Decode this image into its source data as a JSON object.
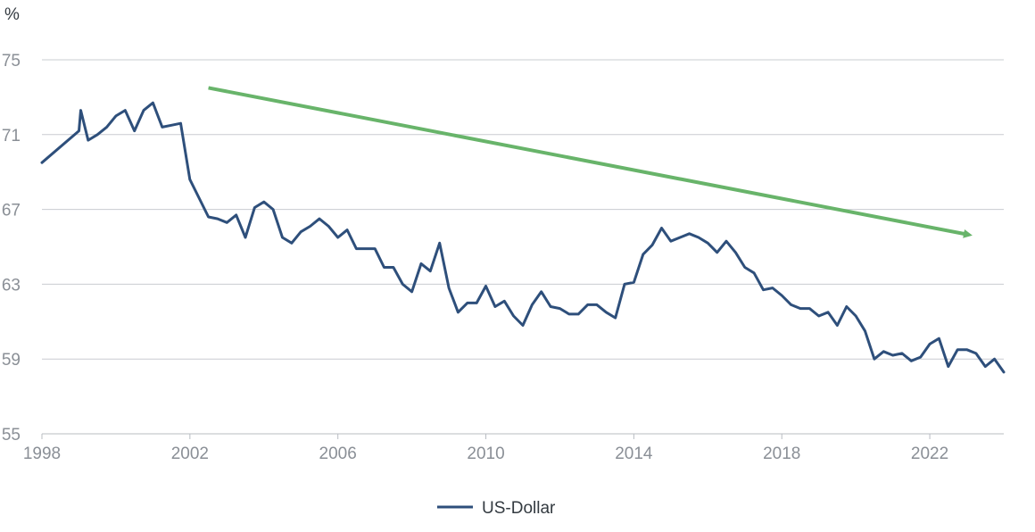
{
  "chart_data": {
    "type": "line",
    "unit_label": "%",
    "xlim": [
      1998,
      2024
    ],
    "ylim": [
      55,
      75
    ],
    "x_ticks": [
      1998,
      2002,
      2006,
      2010,
      2014,
      2018,
      2022
    ],
    "y_ticks": [
      55,
      59,
      63,
      67,
      71,
      75
    ],
    "grid": "horizontal",
    "legend_position": "bottom-center",
    "series": [
      {
        "name": "US-Dollar",
        "color": "#2e4f7b",
        "x": [
          1998.0,
          1999.0,
          1999.05,
          1999.25,
          1999.5,
          1999.75,
          2000.0,
          2000.25,
          2000.5,
          2000.75,
          2001.0,
          2001.25,
          2001.5,
          2001.75,
          2002.0,
          2002.25,
          2002.5,
          2002.75,
          2003.0,
          2003.25,
          2003.5,
          2003.75,
          2004.0,
          2004.25,
          2004.5,
          2004.75,
          2005.0,
          2005.25,
          2005.5,
          2005.75,
          2006.0,
          2006.25,
          2006.5,
          2006.75,
          2007.0,
          2007.25,
          2007.5,
          2007.75,
          2008.0,
          2008.25,
          2008.5,
          2008.75,
          2009.0,
          2009.25,
          2009.5,
          2009.75,
          2010.0,
          2010.25,
          2010.5,
          2010.75,
          2011.0,
          2011.25,
          2011.5,
          2011.75,
          2012.0,
          2012.25,
          2012.5,
          2012.75,
          2013.0,
          2013.25,
          2013.5,
          2013.75,
          2014.0,
          2014.25,
          2014.5,
          2014.75,
          2015.0,
          2015.25,
          2015.5,
          2015.75,
          2016.0,
          2016.25,
          2016.5,
          2016.75,
          2017.0,
          2017.25,
          2017.5,
          2017.75,
          2018.0,
          2018.25,
          2018.5,
          2018.75,
          2019.0,
          2019.25,
          2019.5,
          2019.75,
          2020.0,
          2020.25,
          2020.5,
          2020.75,
          2021.0,
          2021.25,
          2021.5,
          2021.75,
          2022.0,
          2022.25,
          2022.5,
          2022.75,
          2023.0,
          2023.25,
          2023.5,
          2023.75,
          2024.0
        ],
        "values": [
          69.5,
          71.2,
          72.3,
          70.7,
          71.0,
          71.4,
          72.0,
          72.3,
          71.2,
          72.3,
          72.7,
          71.4,
          71.5,
          71.6,
          68.6,
          67.6,
          66.6,
          66.5,
          66.3,
          66.7,
          65.5,
          67.1,
          67.4,
          67.0,
          65.5,
          65.2,
          65.8,
          66.1,
          66.5,
          66.1,
          65.5,
          65.9,
          64.9,
          64.9,
          64.9,
          63.9,
          63.9,
          63.0,
          62.6,
          64.1,
          63.7,
          65.2,
          62.8,
          61.5,
          62.0,
          62.0,
          62.9,
          61.8,
          62.1,
          61.3,
          60.8,
          61.9,
          62.6,
          61.8,
          61.7,
          61.4,
          61.4,
          61.9,
          61.9,
          61.5,
          61.2,
          63.0,
          63.1,
          64.6,
          65.1,
          66.0,
          65.3,
          65.5,
          65.7,
          65.5,
          65.2,
          64.7,
          65.3,
          64.7,
          63.9,
          63.6,
          62.7,
          62.8,
          62.4,
          61.9,
          61.7,
          61.7,
          61.3,
          61.5,
          60.8,
          61.8,
          61.3,
          60.5,
          59.0,
          59.4,
          59.2,
          59.3,
          58.9,
          59.1,
          59.8,
          60.1,
          58.6,
          59.5,
          59.5,
          59.3,
          58.6,
          59.0,
          58.3
        ]
      }
    ],
    "trend_arrow": {
      "color": "#68b46a",
      "from": [
        2002.5,
        73.5
      ],
      "to": [
        2023.3,
        65.5
      ]
    }
  }
}
